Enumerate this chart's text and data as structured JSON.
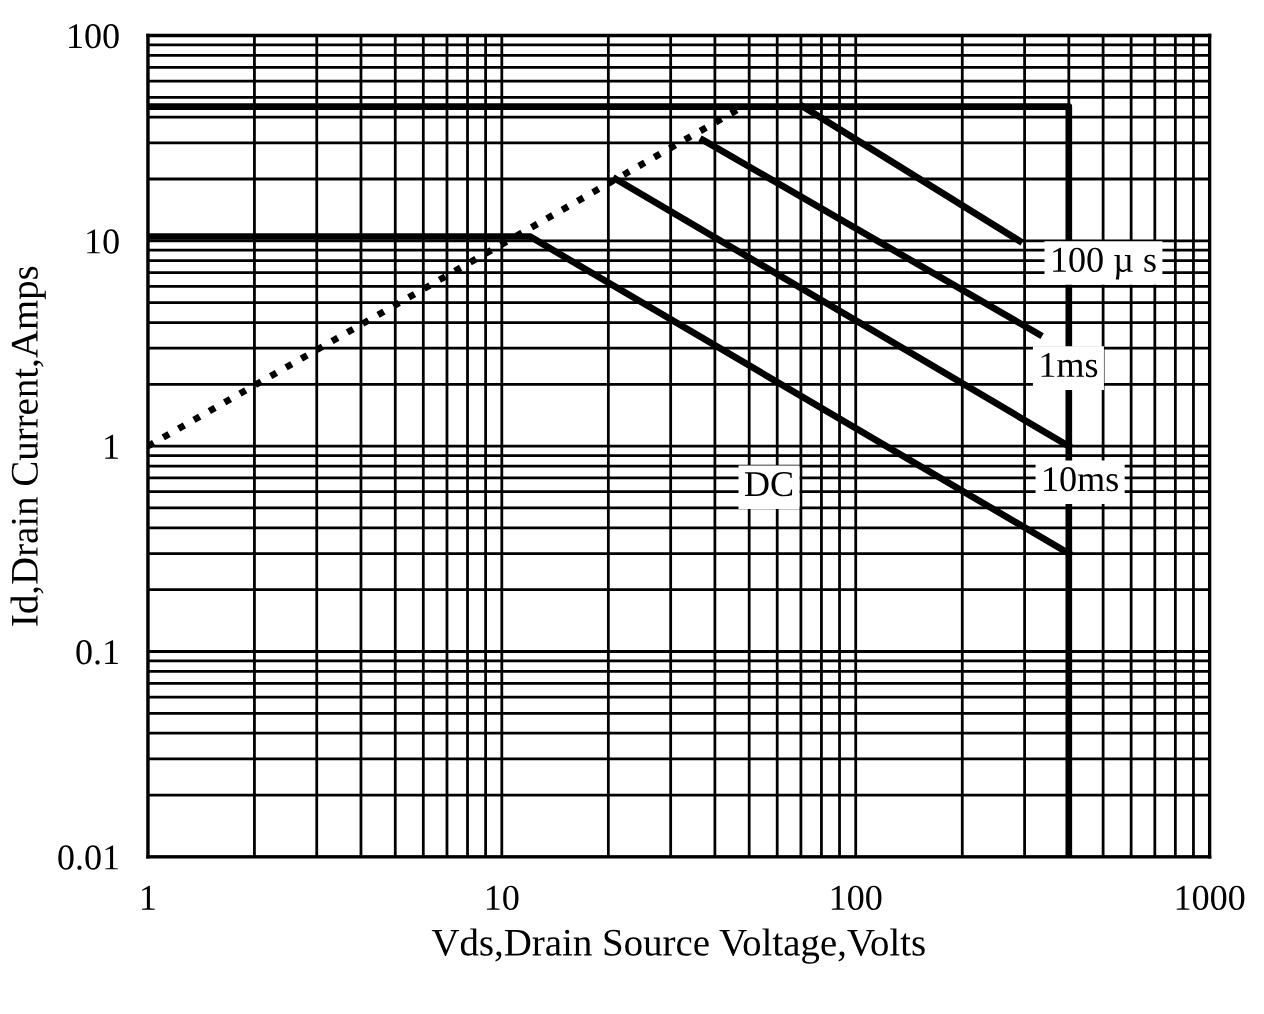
{
  "chart_data": {
    "type": "line",
    "xlabel": "Vds,Drain Source Voltage,Volts",
    "ylabel": "Id,Drain Current,Amps",
    "log": "xy",
    "grid": true,
    "marker": "none",
    "xlim": [
      1,
      1000
    ],
    "xticks": [
      1,
      10,
      100,
      1000
    ],
    "ylim": [
      0.01,
      100
    ],
    "yticks": [
      0.01,
      0.1,
      1,
      10,
      100
    ],
    "series": [
      {
        "color": "#000000",
        "x": [
          1,
          400,
          400
        ],
        "values": [
          45,
          45,
          0.01
        ]
      },
      {
        "color": "#000000",
        "x": [
          1,
          12,
          400
        ],
        "values": [
          10.5,
          10.5,
          0.3
        ]
      },
      {
        "color": "#000000",
        "x": [
          1,
          48
        ],
        "values": [
          1,
          45
        ],
        "line_style": "dotted"
      },
      {
        "color": "#000000",
        "x": [
          71,
          290
        ],
        "values": [
          45,
          10
        ]
      },
      {
        "color": "#000000",
        "x": [
          37,
          330
        ],
        "values": [
          31,
          3.5
        ]
      },
      {
        "color": "#000000",
        "x": [
          21,
          400
        ],
        "values": [
          20,
          1
        ]
      }
    ],
    "annotations": [
      "100 µ s",
      "1ms",
      "10ms",
      "DC"
    ]
  }
}
